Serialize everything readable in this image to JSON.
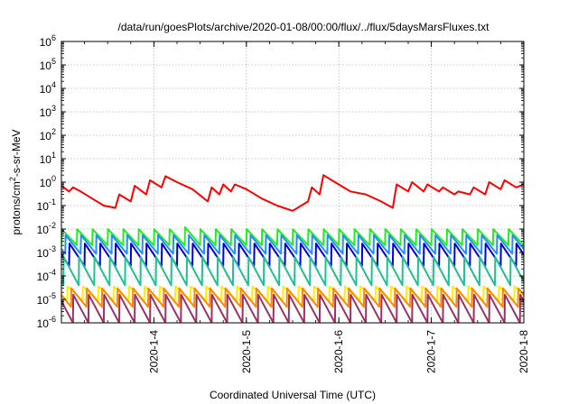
{
  "chart_data": {
    "type": "line",
    "title": "/data/run/goesPlots/archive/2020-01-08/00:00/flux/../flux/5daysMarsFluxes.txt",
    "xlabel": "Coordinated Universal Time (UTC)",
    "ylabel": {
      "base": "protons/cm",
      "sup": "2",
      "rest": "-s-sr-MeV"
    },
    "y_scale": "log",
    "ylim": [
      1e-06,
      1000000.0
    ],
    "xlim": [
      "2020-01-03T00:00",
      "2020-01-08T00:00"
    ],
    "grid": true,
    "x_ticks": [
      {
        "x": "2020-01-04",
        "label": "2020-1-4"
      },
      {
        "x": "2020-01-05",
        "label": "2020-1-5"
      },
      {
        "x": "2020-01-06",
        "label": "2020-1-6"
      },
      {
        "x": "2020-01-07",
        "label": "2020-1-7"
      },
      {
        "x": "2020-01-08",
        "label": "2020-1-8"
      }
    ],
    "y_ticks": [
      {
        "exp": -6,
        "base": "10",
        "sup": "-6"
      },
      {
        "exp": -5,
        "base": "10",
        "sup": "-5"
      },
      {
        "exp": -4,
        "base": "10",
        "sup": "-4"
      },
      {
        "exp": -3,
        "base": "10",
        "sup": "-3"
      },
      {
        "exp": -2,
        "base": "10",
        "sup": "-2"
      },
      {
        "exp": -1,
        "base": "10",
        "sup": "-1"
      },
      {
        "exp": 0,
        "base": "10",
        "sup": "0"
      },
      {
        "exp": 1,
        "base": "10",
        "sup": "1"
      },
      {
        "exp": 2,
        "base": "10",
        "sup": "2"
      },
      {
        "exp": 3,
        "base": "10",
        "sup": "3"
      },
      {
        "exp": 4,
        "base": "10",
        "sup": "4"
      },
      {
        "exp": 5,
        "base": "10",
        "sup": "5"
      },
      {
        "exp": 6,
        "base": "10",
        "sup": "6"
      }
    ],
    "series": [
      {
        "color": "#ff0000",
        "x": [
          "2020-01-03T00:00",
          "2020-01-03T02:00",
          "2020-01-03T03:00",
          "2020-01-03T05:00",
          "2020-01-03T08:00",
          "2020-01-03T11:00",
          "2020-01-03T14:00",
          "2020-01-03T15:00",
          "2020-01-03T18:00",
          "2020-01-03T19:00",
          "2020-01-03T22:00",
          "2020-01-03T23:00",
          "2020-01-04T02:00",
          "2020-01-04T03:00",
          "2020-01-04T06:00",
          "2020-01-04T10:00",
          "2020-01-04T14:00",
          "2020-01-04T15:00",
          "2020-01-04T17:00",
          "2020-01-04T18:00",
          "2020-01-04T20:00",
          "2020-01-04T21:00",
          "2020-01-05T00:00",
          "2020-01-05T04:00",
          "2020-01-05T08:00",
          "2020-01-05T12:00",
          "2020-01-05T16:00",
          "2020-01-05T17:00",
          "2020-01-05T19:00",
          "2020-01-05T20:00",
          "2020-01-05T23:00",
          "2020-01-06T03:00",
          "2020-01-06T07:00",
          "2020-01-06T11:00",
          "2020-01-06T14:00",
          "2020-01-06T15:00",
          "2020-01-06T18:00",
          "2020-01-06T19:00",
          "2020-01-06T22:00",
          "2020-01-06T23:00",
          "2020-01-07T02:00",
          "2020-01-07T03:00",
          "2020-01-07T06:00",
          "2020-01-07T07:00",
          "2020-01-07T10:00",
          "2020-01-07T11:00",
          "2020-01-07T14:00",
          "2020-01-07T15:00",
          "2020-01-07T18:00",
          "2020-01-07T19:00",
          "2020-01-07T22:00",
          "2020-01-08T00:00"
        ],
        "y": [
          0.7,
          0.4,
          0.6,
          0.4,
          0.2,
          0.1,
          0.08,
          0.3,
          0.15,
          0.7,
          0.3,
          1.2,
          0.6,
          1.8,
          1.0,
          0.5,
          0.15,
          0.6,
          0.3,
          0.8,
          0.4,
          0.8,
          0.5,
          0.2,
          0.1,
          0.06,
          0.15,
          0.6,
          0.3,
          2.0,
          1.0,
          0.4,
          0.3,
          0.15,
          0.08,
          0.8,
          0.4,
          1.0,
          0.4,
          0.8,
          0.4,
          0.6,
          0.3,
          0.4,
          0.3,
          0.6,
          0.3,
          1.0,
          0.5,
          1.2,
          0.6,
          0.8
        ]
      },
      {
        "color": "#22ee22",
        "base": 0.0045,
        "amp": 2.2,
        "period_h": 4,
        "phase_h": 0,
        "hump_at_h": 32,
        "hump_value": 0.012
      },
      {
        "color": "#1e90ff",
        "base": 0.0022,
        "amp": 2.5,
        "period_h": 4,
        "phase_h": 1
      },
      {
        "color": "#0000dd",
        "base": 0.0008,
        "amp": 3.0,
        "period_h": 4,
        "phase_h": 2
      },
      {
        "color": "#20c090",
        "base": 0.00016,
        "amp": 4.0,
        "period_h": 4,
        "phase_h": 0.5
      },
      {
        "color": "#ffee00",
        "base": 1.8e-05,
        "amp": 2.0,
        "period_h": 4,
        "phase_h": 1.5
      },
      {
        "color": "#ff8800",
        "base": 1.2e-05,
        "amp": 2.5,
        "period_h": 4,
        "phase_h": 2.5
      },
      {
        "color": "#993366",
        "base": 4e-06,
        "amp": 4.0,
        "period_h": 4,
        "phase_h": 3
      }
    ]
  }
}
